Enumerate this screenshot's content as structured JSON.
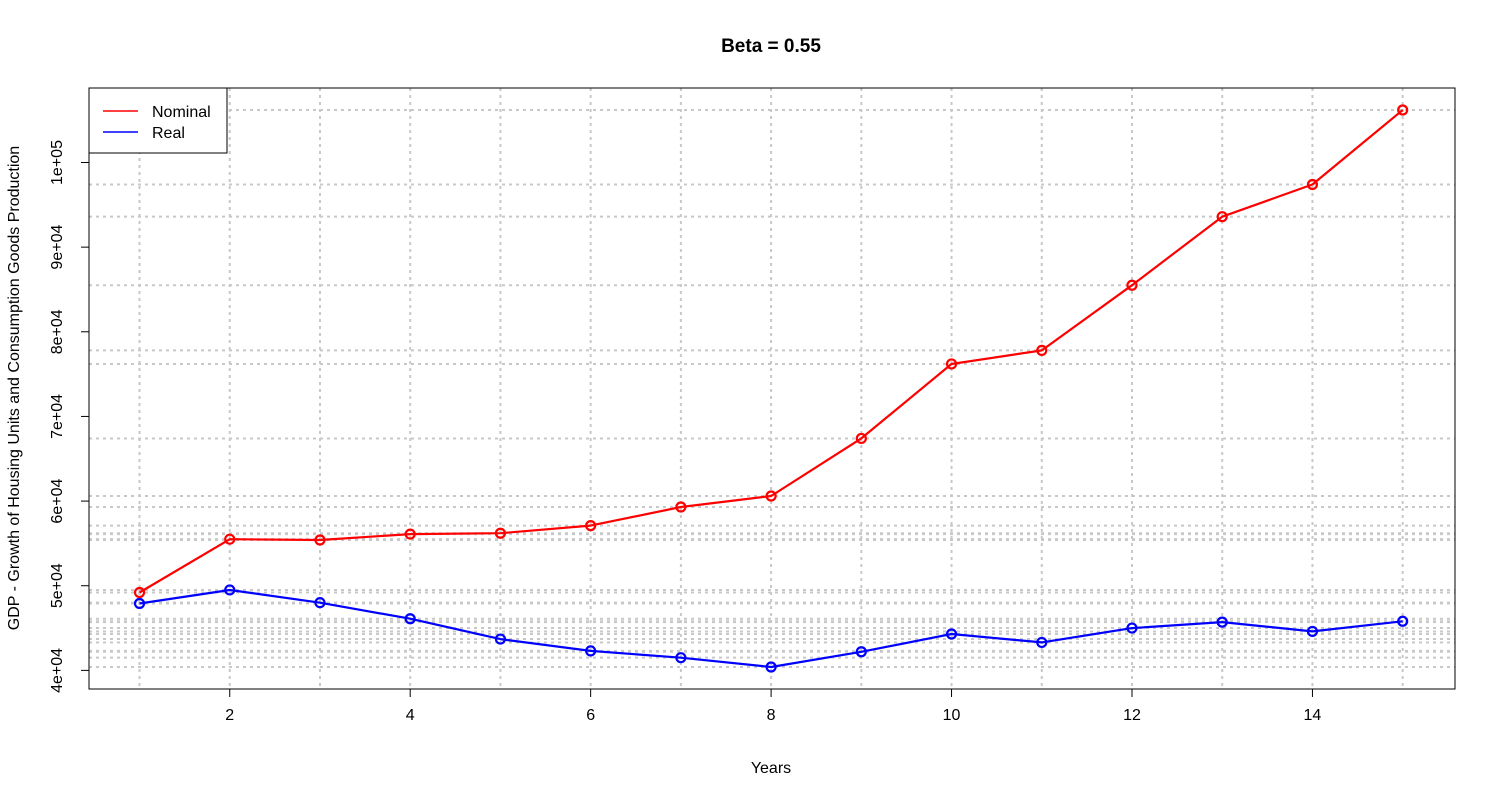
{
  "chart_data": {
    "type": "line",
    "title": "Beta = 0.55",
    "xlabel": "Years",
    "ylabel": "GDP - Growth of Housing Units and Consumption Goods Production",
    "x": [
      1,
      2,
      3,
      4,
      5,
      6,
      7,
      8,
      9,
      10,
      11,
      12,
      13,
      14,
      15
    ],
    "xlim": [
      0.44,
      15.58
    ],
    "ylim": [
      37800,
      108800
    ],
    "x_ticks": [
      2,
      4,
      6,
      8,
      10,
      12,
      14
    ],
    "x_tick_labels": [
      "2",
      "4",
      "6",
      "8",
      "10",
      "12",
      "14"
    ],
    "y_ticks": [
      40000,
      50000,
      60000,
      70000,
      80000,
      90000,
      100000
    ],
    "y_tick_labels": [
      "4e+04",
      "5e+04",
      "6e+04",
      "7e+04",
      "8e+04",
      "9e+04",
      "1e+05"
    ],
    "grid": true,
    "grid_style": "dotted; vertical at each x, horizontal at each data value",
    "legend_position": "top-left",
    "series": [
      {
        "name": "Nominal",
        "color": "#ff0000",
        "values": [
          49200,
          55500,
          55400,
          56100,
          56200,
          57100,
          59300,
          60600,
          67400,
          76200,
          77800,
          85500,
          93600,
          97400,
          106200
        ]
      },
      {
        "name": "Real",
        "color": "#0000ff",
        "values": [
          47900,
          49500,
          48000,
          46100,
          43700,
          42300,
          41500,
          40400,
          42200,
          44300,
          43300,
          45000,
          45700,
          44600,
          45800
        ]
      }
    ]
  }
}
